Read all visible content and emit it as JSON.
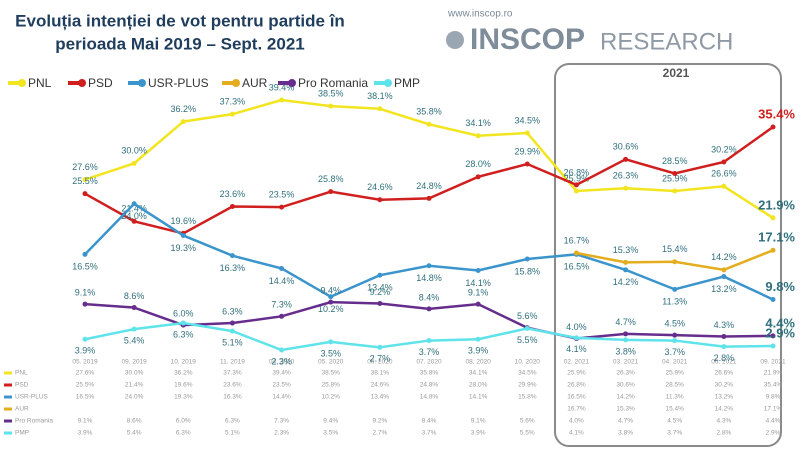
{
  "chart_data": {
    "type": "line",
    "title_lines": [
      "Evoluția intenției de vot pentru partide în",
      "perioada Mai 2019 – Sept. 2021"
    ],
    "website": "www.inscop.ro",
    "logo_main": "INSCOP",
    "logo_sub": "RESEARCH",
    "highlight_label": "2021",
    "categories": [
      "05. 2019",
      "09. 2019",
      "10. 2019",
      "11. 2019",
      "04. 2020",
      "05. 2020",
      "06. 2020",
      "07. 2020",
      "08. 2020",
      "10. 2020",
      "02. 2021",
      "03. 2021",
      "04. 2021",
      "06. 2021",
      "09. 2021"
    ],
    "ylim": [
      0,
      42
    ],
    "series": [
      {
        "name": "PNL",
        "color": "#f2e51f",
        "values": [
          27.6,
          30.0,
          36.2,
          37.3,
          39.4,
          38.5,
          38.1,
          35.8,
          34.1,
          34.5,
          25.9,
          26.3,
          25.9,
          26.6,
          21.9
        ],
        "value_labels": [
          "27.6%",
          "30.0%",
          "36.2%",
          "37.3%",
          "39.4%",
          "38.5%",
          "38.1%",
          "35.8%",
          "34.1%",
          "34.5%",
          "25.9%",
          "26.3%",
          "25.9%",
          "26.6%",
          "21.9%"
        ]
      },
      {
        "name": "PSD",
        "color": "#d01f1f",
        "values": [
          25.5,
          21.4,
          19.6,
          23.6,
          23.5,
          25.8,
          24.6,
          24.8,
          28.0,
          29.9,
          26.8,
          30.6,
          28.5,
          30.2,
          35.4
        ],
        "value_labels": [
          "25.5%",
          "21.4%",
          "19.6%",
          "23.6%",
          "23.5%",
          "25.8%",
          "24.6%",
          "24.8%",
          "28.0%",
          "29.9%",
          "26.8%",
          "30.6%",
          "28.5%",
          "30.2%",
          "35.4%"
        ]
      },
      {
        "name": "USR-PLUS",
        "color": "#3b95cc",
        "values": [
          16.5,
          24.0,
          19.3,
          16.3,
          14.4,
          10.2,
          13.4,
          14.8,
          14.1,
          15.8,
          16.5,
          14.2,
          11.3,
          13.2,
          9.8
        ],
        "value_labels": [
          "16.5%",
          "24.0%",
          "19.3%",
          "16.3%",
          "14.4%",
          "10.2%",
          "13.4%",
          "14.8%",
          "14.1%",
          "15.8%",
          "16.5%",
          "14.2%",
          "11.3%",
          "13.2%",
          "9.8%"
        ]
      },
      {
        "name": "AUR",
        "color": "#e3ad1e",
        "values": [
          null,
          null,
          null,
          null,
          null,
          null,
          null,
          null,
          null,
          null,
          16.7,
          15.3,
          15.4,
          14.2,
          17.1
        ],
        "value_labels": [
          null,
          null,
          null,
          null,
          null,
          null,
          null,
          null,
          null,
          null,
          "16.7%",
          "15.3%",
          "15.4%",
          "14.2%",
          "17.1%"
        ]
      },
      {
        "name": "Pro Romania",
        "color": "#662d8c",
        "values": [
          9.1,
          8.6,
          6.0,
          6.3,
          7.3,
          9.4,
          9.2,
          8.4,
          9.1,
          5.6,
          4.0,
          4.7,
          4.5,
          4.3,
          4.4
        ],
        "value_labels": [
          "9.1%",
          "8.6%",
          "6.0%",
          "6.3%",
          "7.3%",
          "9.4%",
          "9.2%",
          "8.4%",
          "9.1%",
          "5.6%",
          "4.0%",
          "4.7%",
          "4.5%",
          "4.3%",
          "4.4%"
        ]
      },
      {
        "name": "PMP",
        "color": "#5ee3ea",
        "values": [
          3.9,
          5.4,
          6.3,
          5.1,
          2.3,
          3.5,
          2.7,
          3.7,
          3.9,
          5.5,
          4.1,
          3.8,
          3.7,
          2.8,
          2.9
        ],
        "value_labels": [
          "3.9%",
          "5.4%",
          "6.3%",
          "5.1%",
          "2.3%",
          "3.5%",
          "2.7%",
          "3.7%",
          "3.9%",
          "5.5%",
          "4.1%",
          "3.8%",
          "3.7%",
          "2.8%",
          "2.9%"
        ]
      }
    ]
  }
}
